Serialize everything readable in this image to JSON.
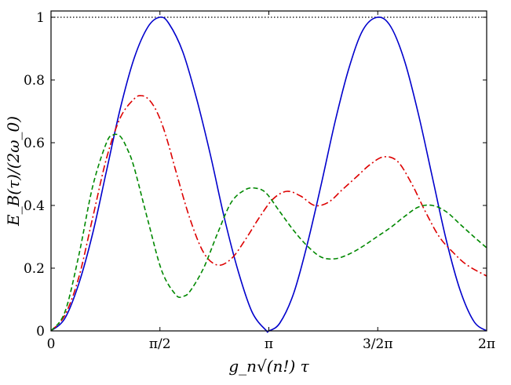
{
  "chart_data": {
    "type": "line",
    "title": "",
    "xlabel": "g_n√(n!) τ",
    "ylabel": "E_B(τ)/(2ω_0)",
    "xlim": [
      0,
      6.283185
    ],
    "ylim": [
      0,
      1.02
    ],
    "grid": false,
    "x_ticks": [
      {
        "value": 0,
        "label": "0"
      },
      {
        "value": 1.570796,
        "label": "π/2"
      },
      {
        "value": 3.141593,
        "label": "π"
      },
      {
        "value": 4.712389,
        "label": "3/2π"
      },
      {
        "value": 6.283185,
        "label": "2π"
      }
    ],
    "y_ticks": [
      {
        "value": 0,
        "label": "0"
      },
      {
        "value": 0.2,
        "label": "0.2"
      },
      {
        "value": 0.4,
        "label": "0.4"
      },
      {
        "value": 0.6,
        "label": "0.6"
      },
      {
        "value": 0.8,
        "label": "0.8"
      },
      {
        "value": 1.0,
        "label": "1"
      }
    ],
    "series": [
      {
        "style": "solid",
        "color": "#0000cc",
        "x": [
          0,
          0.2,
          0.4,
          0.6,
          0.8,
          1.0,
          1.2,
          1.4,
          1.571,
          1.7,
          1.9,
          2.1,
          2.3,
          2.5,
          2.7,
          2.9,
          3.1,
          3.1416,
          3.3,
          3.5,
          3.7,
          3.9,
          4.1,
          4.3,
          4.5,
          4.712,
          4.9,
          5.1,
          5.3,
          5.5,
          5.7,
          5.9,
          6.1,
          6.283
        ],
        "y": [
          0,
          0.04,
          0.15,
          0.31,
          0.51,
          0.71,
          0.87,
          0.97,
          1.0,
          0.98,
          0.89,
          0.74,
          0.56,
          0.36,
          0.19,
          0.06,
          0.002,
          0,
          0.025,
          0.12,
          0.28,
          0.47,
          0.67,
          0.84,
          0.96,
          1.0,
          0.97,
          0.86,
          0.69,
          0.49,
          0.29,
          0.13,
          0.03,
          0
        ]
      },
      {
        "style": "dashdot",
        "color": "#dd0000",
        "x": [
          0,
          0.2,
          0.4,
          0.6,
          0.8,
          1.0,
          1.2,
          1.3,
          1.4,
          1.5,
          1.6,
          1.7,
          1.8,
          2.0,
          2.2,
          2.4,
          2.6,
          2.8,
          3.0,
          3.2,
          3.4,
          3.6,
          3.8,
          4.0,
          4.2,
          4.4,
          4.6,
          4.8,
          5.0,
          5.2,
          5.4,
          5.6,
          5.8,
          6.0,
          6.283
        ],
        "y": [
          0,
          0.05,
          0.17,
          0.36,
          0.55,
          0.68,
          0.74,
          0.75,
          0.74,
          0.71,
          0.66,
          0.59,
          0.51,
          0.36,
          0.25,
          0.21,
          0.23,
          0.29,
          0.36,
          0.42,
          0.445,
          0.43,
          0.4,
          0.41,
          0.45,
          0.49,
          0.53,
          0.555,
          0.54,
          0.47,
          0.38,
          0.3,
          0.25,
          0.21,
          0.175
        ]
      },
      {
        "style": "dashed",
        "color": "#008800",
        "x": [
          0,
          0.2,
          0.4,
          0.6,
          0.8,
          0.9,
          1.0,
          1.1,
          1.2,
          1.4,
          1.6,
          1.8,
          1.9,
          2.0,
          2.2,
          2.4,
          2.6,
          2.8,
          2.95,
          3.1,
          3.3,
          3.5,
          3.7,
          3.9,
          4.1,
          4.3,
          4.5,
          4.7,
          4.9,
          5.1,
          5.3,
          5.5,
          5.7,
          5.9,
          6.1,
          6.283
        ],
        "y": [
          0,
          0.06,
          0.24,
          0.46,
          0.6,
          0.625,
          0.62,
          0.58,
          0.52,
          0.35,
          0.19,
          0.115,
          0.11,
          0.125,
          0.2,
          0.31,
          0.41,
          0.45,
          0.455,
          0.44,
          0.38,
          0.32,
          0.27,
          0.235,
          0.23,
          0.245,
          0.27,
          0.3,
          0.33,
          0.365,
          0.395,
          0.4,
          0.38,
          0.34,
          0.3,
          0.265
        ]
      }
    ],
    "reference_line": {
      "y": 1.0,
      "style": "dotted",
      "color": "#000000"
    }
  }
}
